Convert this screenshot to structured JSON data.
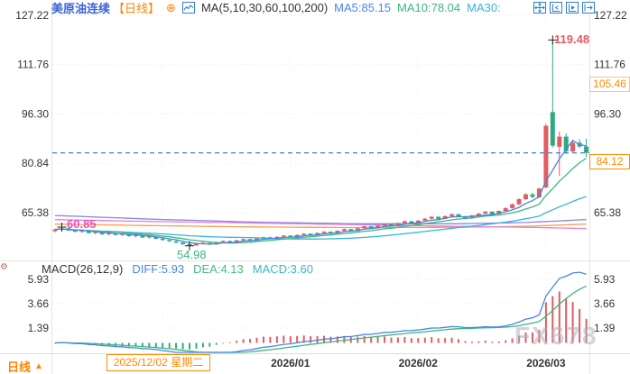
{
  "header": {
    "title": "美原油连续",
    "period": "【日线】",
    "add_icon": "⊕",
    "ma_group_label": "MA(5,10,30,60,100,200)",
    "ma5": "MA5:85.15",
    "ma10": "MA10:78.04",
    "ma30": "MA30:"
  },
  "macd_header": {
    "label": "MACD(26,12,9)",
    "diff": "DIFF:5.93",
    "dea": "DEA:4.13",
    "macd": "MACD:3.60"
  },
  "annotations": {
    "peak_high": "119.48",
    "early_high": "60.85",
    "range_low": "54.98"
  },
  "price_tags": {
    "session_level": "105.46",
    "last_price": "84.12"
  },
  "x_axis": {
    "crosshair_date": "2025/12/02 星期二",
    "ticks": [
      "2025/12",
      "2026/01",
      "2026/02",
      "2026/03"
    ]
  },
  "bottom_bar": {
    "period": "日线",
    "arrow": "▲"
  },
  "watermark": "FX678",
  "icons": [
    "crosshair-icon",
    "compress-axis-icon",
    "play-axis-icon",
    "shift-right-icon",
    "indicator-settings-icon",
    "kline-icon",
    "add-indicator-icon"
  ],
  "colors": {
    "title_blue": "#3b63d6",
    "orange": "#ff8400",
    "up_red": "#e15d62",
    "down_green": "#2fa883",
    "dashed_line_blue": "#3b7fe0",
    "peak_red": "#f4565e",
    "high_magenta": "#e84fc0",
    "low_green": "#3cb887",
    "axis_text": "#333333",
    "grid": "#e7e7e7",
    "watermark_gray": "#aeb4c2"
  },
  "chart_data": {
    "type": "candlestick",
    "title": "美原油连续 日线 (US Crude Oil Continuous, daily)",
    "price_axis_ticks": [
      127.22,
      111.76,
      96.3,
      80.84,
      65.38
    ],
    "macd_axis_ticks": [
      5.93,
      3.66,
      1.39
    ],
    "x_tick_labels": [
      "2025/12",
      "2026/01",
      "2026/02",
      "2026/03"
    ],
    "x_tick_indices": [
      16,
      35,
      54,
      73
    ],
    "last_price": 84.12,
    "session_level": 105.46,
    "range_high": 119.48,
    "range_low": 54.98,
    "early_high": 60.85,
    "ma_values": {
      "ma5": 85.15,
      "ma10": 78.04
    },
    "macd_values": {
      "diff": 5.93,
      "dea": 4.13,
      "macd": 3.6
    },
    "markers": [
      {
        "i": 1,
        "price": 60.85
      },
      {
        "i": 20,
        "price": 54.98
      },
      {
        "i": 74,
        "price": 119.48
      }
    ],
    "candles": [
      [
        59.6,
        60.4,
        59.2,
        60.1
      ],
      [
        60.0,
        60.85,
        59.7,
        60.5
      ],
      [
        60.5,
        60.7,
        59.6,
        59.8
      ],
      [
        59.8,
        60.1,
        59.2,
        59.4
      ],
      [
        59.4,
        59.9,
        59.0,
        59.7
      ],
      [
        59.7,
        59.9,
        58.8,
        59.0
      ],
      [
        59.0,
        59.5,
        58.6,
        59.3
      ],
      [
        59.3,
        59.4,
        58.4,
        58.6
      ],
      [
        58.6,
        59.2,
        58.3,
        59.0
      ],
      [
        59.0,
        59.1,
        58.2,
        58.4
      ],
      [
        58.4,
        58.9,
        58.0,
        58.7
      ],
      [
        58.7,
        58.8,
        57.8,
        58.0
      ],
      [
        58.0,
        58.5,
        57.6,
        58.3
      ],
      [
        58.3,
        58.4,
        57.4,
        57.6
      ],
      [
        57.6,
        58.1,
        57.2,
        57.9
      ],
      [
        57.9,
        58.0,
        57.0,
        57.2
      ],
      [
        57.2,
        57.6,
        56.6,
        56.8
      ],
      [
        56.8,
        57.2,
        56.2,
        56.4
      ],
      [
        56.4,
        56.8,
        55.8,
        56.0
      ],
      [
        56.0,
        56.3,
        55.3,
        55.5
      ],
      [
        55.5,
        55.8,
        54.98,
        55.1
      ],
      [
        55.1,
        55.9,
        55.0,
        55.7
      ],
      [
        55.7,
        56.2,
        55.4,
        55.9
      ],
      [
        55.9,
        56.0,
        55.2,
        55.4
      ],
      [
        55.4,
        56.3,
        55.3,
        56.1
      ],
      [
        56.1,
        56.7,
        55.9,
        56.5
      ],
      [
        56.5,
        56.6,
        55.8,
        56.0
      ],
      [
        56.0,
        56.9,
        55.9,
        56.7
      ],
      [
        56.7,
        57.3,
        56.5,
        57.1
      ],
      [
        57.1,
        57.2,
        56.4,
        56.6
      ],
      [
        56.6,
        57.5,
        56.5,
        57.3
      ],
      [
        57.3,
        57.9,
        57.1,
        57.7
      ],
      [
        57.7,
        57.8,
        57.0,
        57.2
      ],
      [
        57.2,
        58.0,
        57.1,
        57.8
      ],
      [
        57.8,
        58.4,
        57.6,
        58.2
      ],
      [
        58.2,
        58.3,
        57.5,
        57.7
      ],
      [
        57.7,
        58.6,
        57.6,
        58.4
      ],
      [
        58.4,
        59.0,
        58.2,
        58.8
      ],
      [
        58.8,
        58.9,
        58.1,
        58.3
      ],
      [
        58.3,
        59.2,
        58.2,
        59.0
      ],
      [
        59.0,
        59.6,
        58.8,
        59.4
      ],
      [
        59.4,
        59.5,
        58.7,
        58.9
      ],
      [
        58.9,
        59.9,
        58.8,
        59.7
      ],
      [
        59.7,
        60.4,
        59.5,
        60.2
      ],
      [
        60.2,
        60.3,
        59.4,
        59.6
      ],
      [
        59.6,
        60.7,
        59.5,
        60.5
      ],
      [
        60.5,
        61.3,
        60.3,
        61.1
      ],
      [
        61.1,
        61.2,
        60.3,
        60.5
      ],
      [
        60.5,
        61.5,
        60.4,
        61.3
      ],
      [
        61.3,
        62.1,
        61.1,
        61.9
      ],
      [
        61.9,
        62.0,
        61.0,
        61.2
      ],
      [
        61.2,
        62.3,
        61.1,
        62.1
      ],
      [
        62.1,
        62.9,
        61.9,
        62.7
      ],
      [
        62.7,
        62.8,
        61.8,
        62.0
      ],
      [
        62.0,
        63.1,
        61.9,
        62.9
      ],
      [
        62.9,
        63.7,
        62.7,
        63.5
      ],
      [
        63.5,
        64.3,
        63.3,
        64.1
      ],
      [
        64.1,
        64.2,
        63.2,
        63.4
      ],
      [
        63.4,
        64.5,
        63.3,
        64.3
      ],
      [
        64.3,
        65.1,
        64.1,
        64.9
      ],
      [
        64.9,
        65.0,
        63.9,
        64.1
      ],
      [
        64.1,
        64.4,
        63.3,
        63.6
      ],
      [
        63.6,
        64.7,
        63.5,
        64.5
      ],
      [
        64.5,
        65.3,
        64.3,
        65.1
      ],
      [
        65.1,
        65.9,
        64.9,
        65.7
      ],
      [
        65.7,
        65.8,
        64.7,
        64.9
      ],
      [
        64.9,
        66.1,
        64.8,
        65.9
      ],
      [
        65.9,
        67.0,
        65.7,
        66.8
      ],
      [
        66.8,
        68.3,
        66.6,
        68.0
      ],
      [
        68.0,
        69.9,
        67.8,
        69.6
      ],
      [
        69.6,
        71.5,
        69.3,
        71.1
      ],
      [
        71.1,
        71.6,
        69.9,
        70.3
      ],
      [
        70.2,
        73.2,
        70.0,
        72.9
      ],
      [
        73.3,
        93.2,
        73.0,
        92.6
      ],
      [
        96.9,
        119.48,
        85.8,
        86.4
      ],
      [
        86.0,
        90.8,
        76.9,
        89.2
      ],
      [
        89.2,
        90.2,
        83.8,
        84.6
      ],
      [
        84.6,
        87.9,
        83.9,
        87.3
      ],
      [
        87.3,
        88.4,
        85.7,
        86.1
      ],
      [
        86.1,
        88.6,
        82.9,
        84.12
      ]
    ],
    "long_ma": {
      "ma60": {
        "idx": [
          0,
          15,
          30,
          45,
          60,
          70,
          79
        ],
        "val": [
          64.5,
          63.3,
          62.4,
          61.9,
          61.9,
          62.3,
          63.2
        ]
      },
      "ma100": {
        "idx": [
          0,
          15,
          30,
          45,
          60,
          70,
          79
        ],
        "val": [
          61.8,
          61.3,
          60.9,
          60.7,
          60.8,
          61.1,
          61.8
        ]
      },
      "ma200": {
        "idx": [
          0,
          15,
          30,
          45,
          60,
          70,
          79
        ],
        "val": [
          63.2,
          62.6,
          62.1,
          61.6,
          61.1,
          60.8,
          60.4
        ]
      }
    },
    "ma_colors": {
      "ma5": "#4a84e8",
      "ma10": "#3cb87f",
      "ma30": "#35b6d9",
      "ma60": "#8a85e0",
      "ma100": "#f5a04a",
      "ma200": "#e87fd4"
    },
    "candle_colors": {
      "up": "#e15d62",
      "down": "#2fa883"
    },
    "macd_hist_colors": {
      "positive": "#e15d62",
      "negative": "#35a884"
    },
    "legend_position": "top",
    "grid": true
  }
}
